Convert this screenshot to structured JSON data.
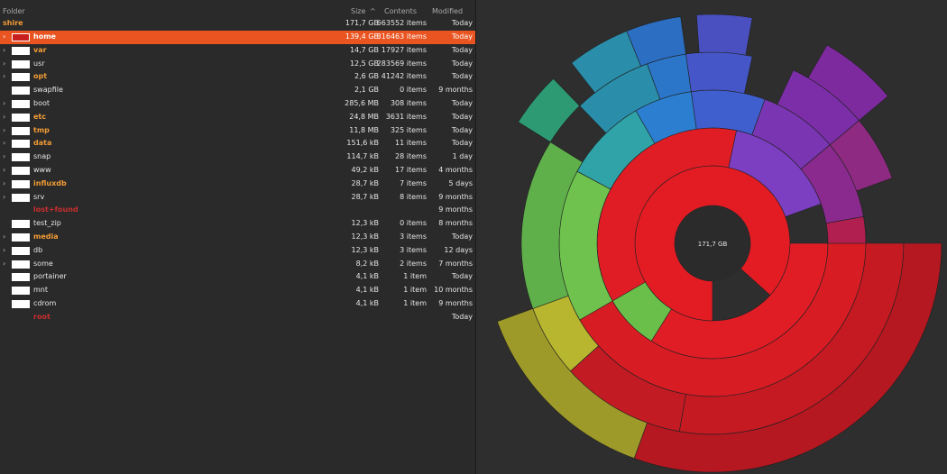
{
  "columns": {
    "folder": "Folder",
    "size": "Size",
    "sort_arrow": "^",
    "contents": "Contents",
    "modified": "Modified"
  },
  "root": {
    "name": "shire",
    "size": "171,7 GB",
    "contents": "663552 items",
    "modified": "Today"
  },
  "rows": [
    {
      "name": "home",
      "size": "139,4 GB",
      "contents": "316463 items",
      "modified": "Today",
      "style": "bold",
      "expander": true,
      "swatch": true,
      "selected": true
    },
    {
      "name": "var",
      "size": "14,7 GB",
      "contents": "17927 items",
      "modified": "Today",
      "style": "bold",
      "expander": true,
      "swatch": true
    },
    {
      "name": "usr",
      "size": "12,5 GB",
      "contents": "283569 items",
      "modified": "Today",
      "style": "normal",
      "expander": true,
      "swatch": true
    },
    {
      "name": "opt",
      "size": "2,6 GB",
      "contents": "41242 items",
      "modified": "Today",
      "style": "bold",
      "expander": true,
      "swatch": true
    },
    {
      "name": "swapfile",
      "size": "2,1 GB",
      "contents": "0 items",
      "modified": "9 months",
      "style": "normal",
      "expander": false,
      "swatch": true
    },
    {
      "name": "boot",
      "size": "285,6 MB",
      "contents": "308 items",
      "modified": "Today",
      "style": "normal",
      "expander": true,
      "swatch": true
    },
    {
      "name": "etc",
      "size": "24,8 MB",
      "contents": "3631 items",
      "modified": "Today",
      "style": "bold",
      "expander": true,
      "swatch": true
    },
    {
      "name": "tmp",
      "size": "11,8 MB",
      "contents": "325 items",
      "modified": "Today",
      "style": "bold",
      "expander": true,
      "swatch": true
    },
    {
      "name": "data",
      "size": "151,6 kB",
      "contents": "11 items",
      "modified": "Today",
      "style": "bold",
      "expander": true,
      "swatch": true
    },
    {
      "name": "snap",
      "size": "114,7 kB",
      "contents": "28 items",
      "modified": "1 day",
      "style": "normal",
      "expander": true,
      "swatch": true
    },
    {
      "name": "www",
      "size": "49,2 kB",
      "contents": "17 items",
      "modified": "4 months",
      "style": "normal",
      "expander": true,
      "swatch": true
    },
    {
      "name": "influxdb",
      "size": "28,7 kB",
      "contents": "7 items",
      "modified": "5 days",
      "style": "bold",
      "expander": true,
      "swatch": true
    },
    {
      "name": "srv",
      "size": "28,7 kB",
      "contents": "8 items",
      "modified": "9 months",
      "style": "normal",
      "expander": true,
      "swatch": true
    },
    {
      "name": "lost+found",
      "size": "",
      "contents": "",
      "modified": "9 months",
      "style": "red",
      "expander": false,
      "swatch": false
    },
    {
      "name": "test_zip",
      "size": "12,3 kB",
      "contents": "0 items",
      "modified": "8 months",
      "style": "normal",
      "expander": false,
      "swatch": true
    },
    {
      "name": "media",
      "size": "12,3 kB",
      "contents": "3 items",
      "modified": "Today",
      "style": "bold",
      "expander": true,
      "swatch": true
    },
    {
      "name": "db",
      "size": "12,3 kB",
      "contents": "3 items",
      "modified": "12 days",
      "style": "normal",
      "expander": true,
      "swatch": true
    },
    {
      "name": "some",
      "size": "8,2 kB",
      "contents": "2 items",
      "modified": "7 months",
      "style": "normal",
      "expander": true,
      "swatch": true
    },
    {
      "name": "portainer",
      "size": "4,1 kB",
      "contents": "1 item",
      "modified": "Today",
      "style": "normal",
      "expander": false,
      "swatch": true
    },
    {
      "name": "mnt",
      "size": "4,1 kB",
      "contents": "1 item",
      "modified": "10 months",
      "style": "normal",
      "expander": false,
      "swatch": true
    },
    {
      "name": "cdrom",
      "size": "4,1 kB",
      "contents": "1 item",
      "modified": "9 months",
      "style": "normal",
      "expander": false,
      "swatch": true
    },
    {
      "name": "root",
      "size": "",
      "contents": "",
      "modified": "Today",
      "style": "red",
      "expander": false,
      "swatch": false
    }
  ],
  "ring_chart": {
    "center_label": "171,7 GB",
    "colors": {
      "selected_row": "#e95420",
      "bold_name": "#f39c35",
      "denied_name": "#c92e2e",
      "home_segment": "#e31c24"
    }
  }
}
